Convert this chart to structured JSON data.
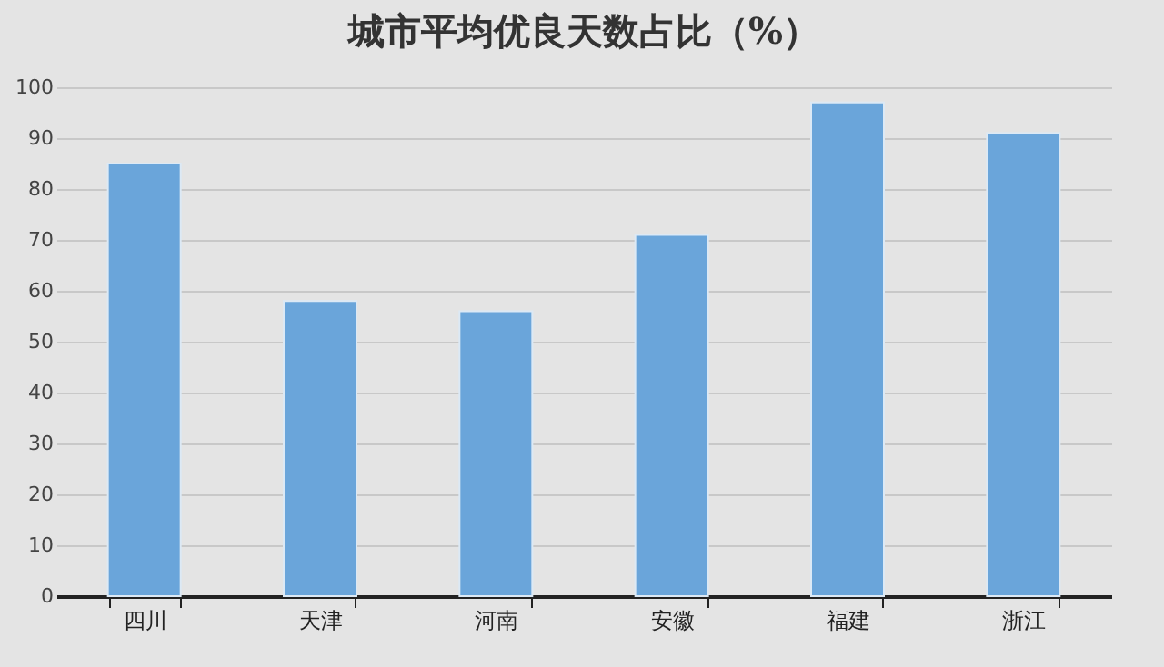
{
  "chart_data": {
    "type": "bar",
    "title": "城市平均优良天数占比（%）",
    "categories": [
      "四川",
      "天津",
      "河南",
      "安徽",
      "福建",
      "浙江"
    ],
    "values": [
      85,
      58,
      56,
      71,
      97,
      91
    ],
    "color": "#6aa5da",
    "ylim": [
      0,
      100
    ],
    "yticks": [
      0,
      10,
      20,
      30,
      40,
      50,
      60,
      70,
      80,
      90,
      100
    ],
    "grid": "y"
  }
}
